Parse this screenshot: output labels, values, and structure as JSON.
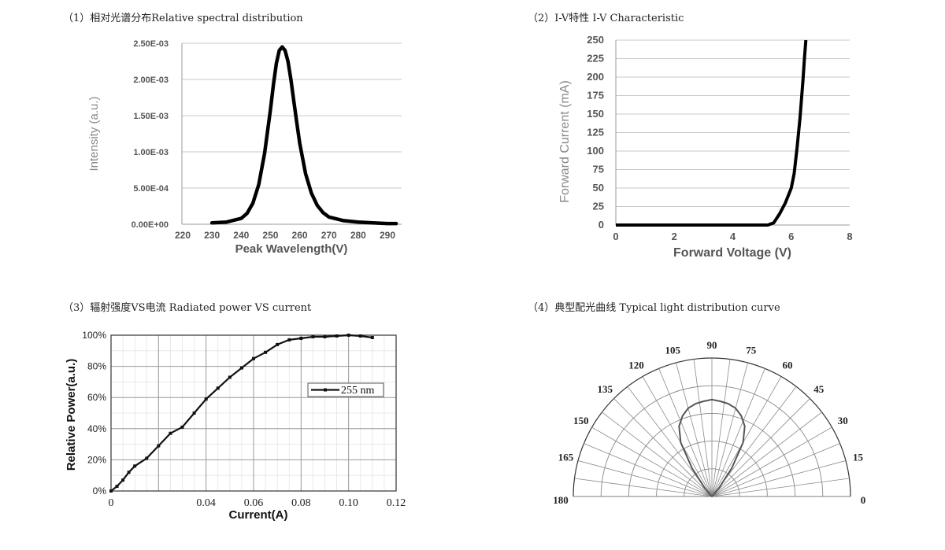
{
  "titles": {
    "c1": "（1）相对光谱分布Relative spectral distribution",
    "c2": "（2）I-V特性 I-V Characteristic",
    "c3": "（3）辐射强度VS电流 Radiated power VS current",
    "c4": "（4）典型配光曲线 Typical light distribution curve"
  },
  "colors": {
    "curve": "#000000",
    "grid": "#c8c8c8",
    "axis_text": "#555555",
    "polar": "#555555"
  },
  "chart_data": [
    {
      "id": "spectral",
      "type": "line",
      "xlabel": "Peak Wavelength(V)",
      "ylabel": "Intensity (a.u.)",
      "xlim": [
        220,
        290
      ],
      "ylim": [
        0,
        0.0025
      ],
      "x_ticks": [
        "220",
        "230",
        "240",
        "250",
        "260",
        "270",
        "280",
        "290"
      ],
      "y_ticks": [
        "0.00E+00",
        "5.00E-04",
        "1.00E-03",
        "1.50E-03",
        "2.00E-03",
        "2.50E-03"
      ],
      "y_tick_values": [
        0,
        0.0005,
        0.001,
        0.0015,
        0.002,
        0.0025
      ],
      "grid": "horizontal",
      "series": [
        {
          "x": [
            230,
            235,
            240,
            242,
            244,
            246,
            248,
            250,
            251,
            252,
            253,
            254,
            255,
            256,
            257,
            258,
            259,
            260,
            262,
            264,
            266,
            268,
            270,
            275,
            280,
            285,
            290,
            293
          ],
          "values": [
            2e-05,
            3e-05,
            8e-05,
            0.00015,
            0.00029,
            0.00055,
            0.00098,
            0.00158,
            0.00192,
            0.00222,
            0.0024,
            0.00245,
            0.0024,
            0.00225,
            0.002,
            0.0017,
            0.0014,
            0.00112,
            0.0007,
            0.00043,
            0.00026,
            0.00016,
            0.0001,
            5e-05,
            3e-05,
            2e-05,
            1e-05,
            1e-05
          ]
        }
      ]
    },
    {
      "id": "iv",
      "type": "line",
      "xlabel": "Forward Voltage (V)",
      "ylabel": "Forward Current (mA)",
      "xlim": [
        0,
        8
      ],
      "ylim": [
        0,
        250
      ],
      "x_ticks": [
        "0",
        "2",
        "4",
        "6",
        "8"
      ],
      "x_tick_values": [
        0,
        2,
        4,
        6,
        8
      ],
      "y_ticks": [
        "0",
        "25",
        "50",
        "75",
        "100",
        "125",
        "150",
        "175",
        "200",
        "225",
        "250"
      ],
      "y_tick_values": [
        0,
        25,
        50,
        75,
        100,
        125,
        150,
        175,
        200,
        225,
        250
      ],
      "grid": "horizontal",
      "series": [
        {
          "x": [
            0,
            5.2,
            5.4,
            5.6,
            5.8,
            6.0,
            6.1,
            6.2,
            6.3,
            6.4,
            6.45,
            6.5
          ],
          "values": [
            0,
            0,
            3,
            15,
            30,
            50,
            70,
            105,
            145,
            195,
            225,
            250
          ]
        }
      ]
    },
    {
      "id": "power",
      "type": "line",
      "xlabel": "Current(A)",
      "ylabel": "Relative Power(a.u.)",
      "xlim": [
        0,
        0.12
      ],
      "ylim": [
        0,
        1.0
      ],
      "x_ticks": [
        "0",
        "0.04",
        "0.06",
        "0.08",
        "0.10",
        "0.12"
      ],
      "x_tick_values": [
        0,
        0.04,
        0.06,
        0.08,
        0.1,
        0.12
      ],
      "y_ticks": [
        "0%",
        "20%",
        "40%",
        "60%",
        "80%",
        "100%"
      ],
      "y_tick_values": [
        0,
        0.2,
        0.4,
        0.6,
        0.8,
        1.0
      ],
      "grid": "both",
      "legend": "right",
      "series": [
        {
          "name": "255 nm",
          "x": [
            0,
            0.0025,
            0.005,
            0.0075,
            0.01,
            0.015,
            0.02,
            0.025,
            0.03,
            0.035,
            0.04,
            0.045,
            0.05,
            0.055,
            0.06,
            0.065,
            0.07,
            0.075,
            0.08,
            0.085,
            0.09,
            0.095,
            0.1,
            0.105,
            0.11
          ],
          "values": [
            0.0,
            0.03,
            0.07,
            0.12,
            0.16,
            0.21,
            0.29,
            0.37,
            0.41,
            0.5,
            0.59,
            0.66,
            0.73,
            0.79,
            0.85,
            0.89,
            0.94,
            0.97,
            0.98,
            0.99,
            0.99,
            0.995,
            1.0,
            0.995,
            0.985
          ]
        }
      ]
    },
    {
      "id": "polar",
      "type": "polar",
      "angle_labels": [
        "0",
        "15",
        "30",
        "45",
        "60",
        "75",
        "90",
        "105",
        "120",
        "135",
        "150",
        "165",
        "180"
      ],
      "angle_values": [
        0,
        15,
        30,
        45,
        60,
        75,
        90,
        105,
        120,
        135,
        150,
        165,
        180
      ],
      "rings": [
        0.2,
        0.4,
        0.6,
        0.8,
        1.0
      ],
      "series": [
        {
          "angles": [
            0,
            10,
            20,
            30,
            40,
            50,
            55,
            60,
            65,
            70,
            75,
            80,
            85,
            90,
            95,
            100,
            105,
            110,
            115,
            120,
            125,
            130,
            140,
            150,
            160,
            170,
            180
          ],
          "values": [
            0,
            0,
            0,
            0,
            0,
            0.08,
            0.25,
            0.45,
            0.56,
            0.62,
            0.66,
            0.68,
            0.69,
            0.7,
            0.69,
            0.68,
            0.66,
            0.62,
            0.56,
            0.45,
            0.25,
            0.08,
            0,
            0,
            0,
            0,
            0
          ]
        }
      ]
    }
  ]
}
